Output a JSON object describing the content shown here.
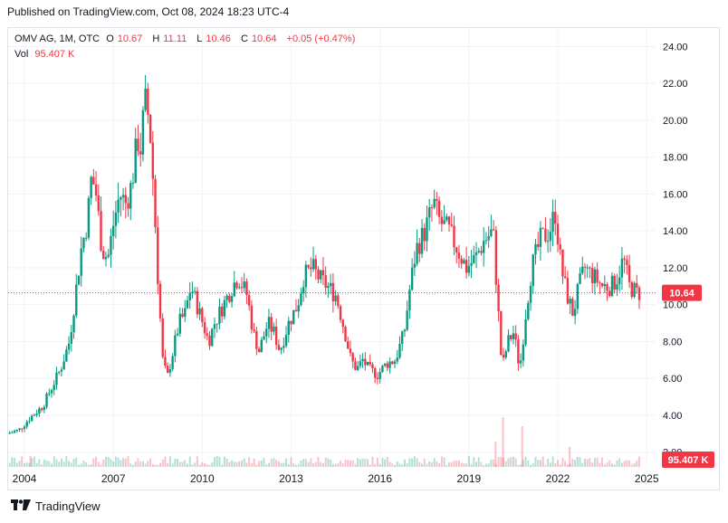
{
  "publisher": "Published on TradingView.com, Oct 08, 2024 18:23 UTC-4",
  "legend": {
    "symbol": "OMV AG, 1M, OTC",
    "o_label": "O",
    "o_value": "10.67",
    "h_label": "H",
    "h_value": "11.11",
    "l_label": "L",
    "l_value": "10.46",
    "c_label": "C",
    "c_value": "10.64",
    "change": "+0.05 (+0.47%)",
    "vol_label": "Vol",
    "vol_value": "95.407 K"
  },
  "brand": "TradingView",
  "colors": {
    "up": "#089981",
    "down": "#f23645",
    "grid": "#f0f3fa",
    "text": "#131722"
  },
  "chart_data": {
    "type": "candlestick",
    "title": "OMV AG, 1M, OTC",
    "y_ticks": [
      "24.00",
      "22.00",
      "20.00",
      "18.00",
      "16.00",
      "14.00",
      "12.00",
      "10.00",
      "8.00",
      "6.00",
      "4.00",
      "2.00"
    ],
    "x_ticks": [
      "2004",
      "2007",
      "2010",
      "2013",
      "2016",
      "2019",
      "2022",
      "2025"
    ],
    "ylim": [
      1.2,
      25.0
    ],
    "xlim": [
      2003.45,
      2025.3
    ],
    "last_price": 10.64,
    "last_price_label": "10.64",
    "volume_label": "95.407 K",
    "price_path": [
      [
        2003.5,
        3.0
      ],
      [
        2003.9,
        3.2
      ],
      [
        2004.3,
        3.9
      ],
      [
        2004.7,
        4.5
      ],
      [
        2005.0,
        5.5
      ],
      [
        2005.3,
        6.5
      ],
      [
        2005.6,
        8.0
      ],
      [
        2005.8,
        10.5
      ],
      [
        2006.0,
        13.0
      ],
      [
        2006.2,
        14.5
      ],
      [
        2006.35,
        17.0
      ],
      [
        2006.5,
        16.0
      ],
      [
        2006.7,
        13.0
      ],
      [
        2006.9,
        12.5
      ],
      [
        2007.1,
        14.5
      ],
      [
        2007.3,
        16.0
      ],
      [
        2007.5,
        15.5
      ],
      [
        2007.7,
        16.5
      ],
      [
        2007.9,
        19.0
      ],
      [
        2008.0,
        18.5
      ],
      [
        2008.15,
        21.0
      ],
      [
        2008.3,
        20.0
      ],
      [
        2008.45,
        16.0
      ],
      [
        2008.6,
        11.0
      ],
      [
        2008.75,
        7.0
      ],
      [
        2008.9,
        6.0
      ],
      [
        2009.1,
        7.5
      ],
      [
        2009.3,
        9.0
      ],
      [
        2009.5,
        9.5
      ],
      [
        2009.7,
        11.0
      ],
      [
        2009.9,
        10.0
      ],
      [
        2010.1,
        9.0
      ],
      [
        2010.3,
        8.0
      ],
      [
        2010.5,
        9.0
      ],
      [
        2010.8,
        10.0
      ],
      [
        2011.1,
        11.0
      ],
      [
        2011.3,
        11.5
      ],
      [
        2011.6,
        10.5
      ],
      [
        2011.8,
        8.5
      ],
      [
        2012.0,
        7.5
      ],
      [
        2012.3,
        9.0
      ],
      [
        2012.5,
        8.5
      ],
      [
        2012.7,
        7.5
      ],
      [
        2013.0,
        9.0
      ],
      [
        2013.3,
        10.0
      ],
      [
        2013.5,
        11.5
      ],
      [
        2013.8,
        12.0
      ],
      [
        2014.0,
        11.5
      ],
      [
        2014.3,
        11.0
      ],
      [
        2014.6,
        10.5
      ],
      [
        2014.9,
        8.5
      ],
      [
        2015.1,
        7.0
      ],
      [
        2015.3,
        6.5
      ],
      [
        2015.5,
        7.0
      ],
      [
        2015.7,
        6.5
      ],
      [
        2016.0,
        6.2
      ],
      [
        2016.3,
        6.8
      ],
      [
        2016.6,
        7.0
      ],
      [
        2016.9,
        8.5
      ],
      [
        2017.1,
        11.0
      ],
      [
        2017.3,
        13.0
      ],
      [
        2017.6,
        14.0
      ],
      [
        2017.9,
        15.5
      ],
      [
        2018.1,
        14.5
      ],
      [
        2018.4,
        14.0
      ],
      [
        2018.7,
        13.0
      ],
      [
        2019.0,
        12.0
      ],
      [
        2019.3,
        12.5
      ],
      [
        2019.6,
        13.5
      ],
      [
        2019.9,
        14.0
      ],
      [
        2020.1,
        9.0
      ],
      [
        2020.2,
        6.5
      ],
      [
        2020.4,
        8.0
      ],
      [
        2020.6,
        8.5
      ],
      [
        2020.8,
        6.5
      ],
      [
        2021.0,
        9.5
      ],
      [
        2021.2,
        12.0
      ],
      [
        2021.5,
        13.5
      ],
      [
        2021.8,
        14.0
      ],
      [
        2022.0,
        15.0
      ],
      [
        2022.2,
        12.0
      ],
      [
        2022.4,
        10.5
      ],
      [
        2022.6,
        9.5
      ],
      [
        2022.8,
        11.0
      ],
      [
        2023.0,
        12.0
      ],
      [
        2023.3,
        11.5
      ],
      [
        2023.6,
        11.0
      ],
      [
        2023.9,
        11.0
      ],
      [
        2024.1,
        11.5
      ],
      [
        2024.3,
        12.5
      ],
      [
        2024.5,
        11.0
      ],
      [
        2024.75,
        10.64
      ]
    ],
    "volume_spikes": [
      [
        2004.2,
        0.12
      ],
      [
        2020.15,
        0.55
      ],
      [
        2020.8,
        0.45
      ],
      [
        2022.4,
        0.22
      ],
      [
        2019.9,
        0.28
      ]
    ]
  }
}
